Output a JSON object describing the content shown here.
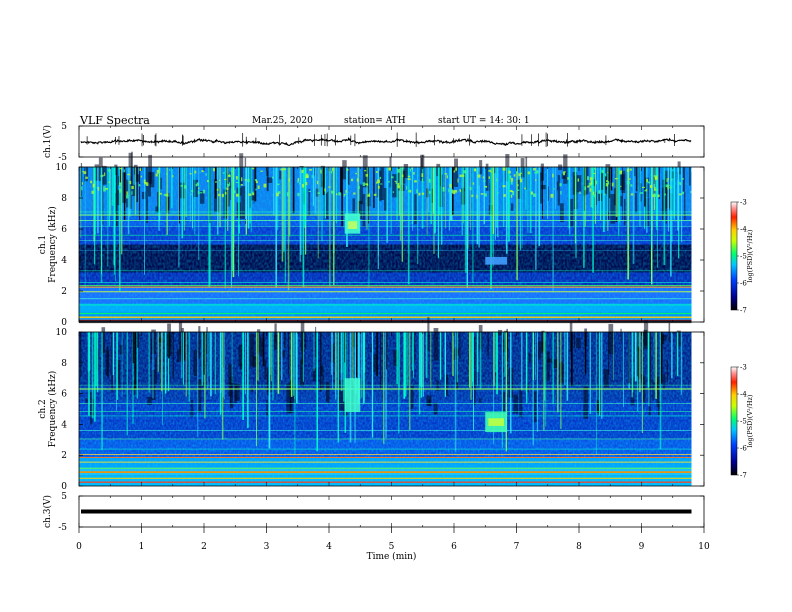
{
  "header": {
    "title": "VLF  Spectra",
    "date": "Mar.25, 2020",
    "station": "station= ATH",
    "start": "start  UT  =    14: 30: 1"
  },
  "chart_data": [
    {
      "type": "line",
      "panel": "ch1-waveform",
      "ylabel": "ch.1(V)",
      "ylim": [
        -5,
        5
      ],
      "yticks": [
        "5",
        "-5"
      ],
      "xlim": [
        0,
        10
      ],
      "x_end": 9.8,
      "approx_level": 0,
      "color": "#000000"
    },
    {
      "type": "heatmap",
      "panel": "ch1-spectrogram",
      "ylabel": "ch.1\nFrequency  (kHz)",
      "ylim": [
        0,
        10
      ],
      "yticks": [
        "0",
        "2",
        "4",
        "6",
        "8",
        "10"
      ],
      "xlim": [
        0,
        10
      ],
      "x_end": 9.8,
      "colorbar": {
        "label": "log(PSD)(V²/Hz)",
        "ticks": [
          "-3",
          "-4",
          "-5",
          "-6",
          "-7"
        ],
        "range": [
          -7,
          -3
        ]
      }
    },
    {
      "type": "heatmap",
      "panel": "ch2-spectrogram",
      "ylabel": "ch.2\nFrequency  (kHz)",
      "ylim": [
        0,
        10
      ],
      "yticks": [
        "0",
        "2",
        "4",
        "6",
        "8",
        "10"
      ],
      "xlim": [
        0,
        10
      ],
      "x_end": 9.8,
      "colorbar": {
        "label": "log(PSD)(V²/Hz)",
        "ticks": [
          "-3",
          "-4",
          "-5",
          "-6",
          "-7"
        ],
        "range": [
          -7,
          -3
        ]
      }
    },
    {
      "type": "line",
      "panel": "ch3-waveform",
      "ylabel": "ch.3(V)",
      "ylim": [
        -5,
        5
      ],
      "yticks": [
        "5",
        "-5"
      ],
      "xlim": [
        0,
        10
      ],
      "x_end": 9.8,
      "approx_level": 0,
      "color": "#000000"
    }
  ],
  "xaxis": {
    "label": "Time  (min)",
    "ticks": [
      "0",
      "1",
      "2",
      "3",
      "4",
      "5",
      "6",
      "7",
      "8",
      "9",
      "10"
    ],
    "range": [
      0,
      10
    ]
  }
}
